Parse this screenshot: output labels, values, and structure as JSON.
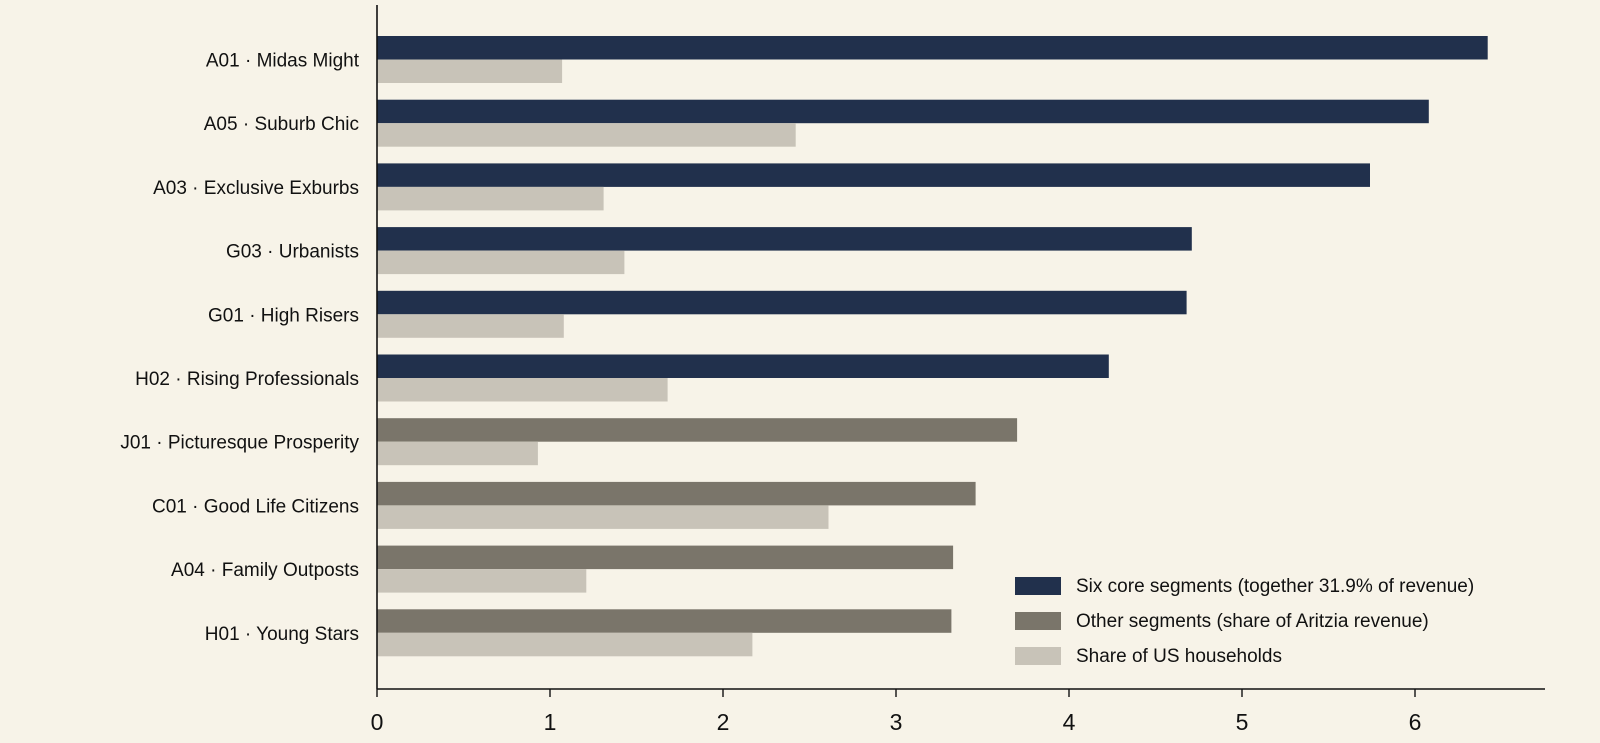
{
  "chart_data": {
    "type": "bar",
    "orientation": "horizontal",
    "title": "",
    "xlabel": "",
    "ylabel": "",
    "xlim": [
      0,
      6.75
    ],
    "xticks": [
      0,
      1,
      2,
      3,
      4,
      5,
      6
    ],
    "grid": false,
    "legend_position": "bottom-right",
    "categories": [
      "A01 · Midas Might",
      "A05 · Suburb Chic",
      "A03 · Exclusive Exburbs",
      "G03 · Urbanists",
      "G01 · High Risers",
      "H02 · Rising Professionals",
      "J01 · Picturesque Prosperity",
      "C01 · Good Life Citizens",
      "A04 · Family Outposts",
      "H01 · Young Stars"
    ],
    "revenue_share": [
      6.42,
      6.08,
      5.74,
      4.71,
      4.68,
      4.23,
      3.7,
      3.46,
      3.33,
      3.32
    ],
    "household_share": [
      1.07,
      2.42,
      1.31,
      1.43,
      1.08,
      1.68,
      0.93,
      2.61,
      1.21,
      2.17
    ],
    "core_count": 6,
    "legend": [
      {
        "key": "core",
        "label": "Six core segments (together 31.9% of revenue)",
        "color": "#21304c"
      },
      {
        "key": "other",
        "label": "Other segments (share of Aritzia revenue)",
        "color": "#7a756a"
      },
      {
        "key": "households",
        "label": "Share of US households",
        "color": "#c8c3b8"
      }
    ],
    "colors": {
      "core": "#21304c",
      "other": "#7a756a",
      "households": "#c8c3b8",
      "background": "#f7f3e8",
      "axis": "#111111"
    }
  }
}
